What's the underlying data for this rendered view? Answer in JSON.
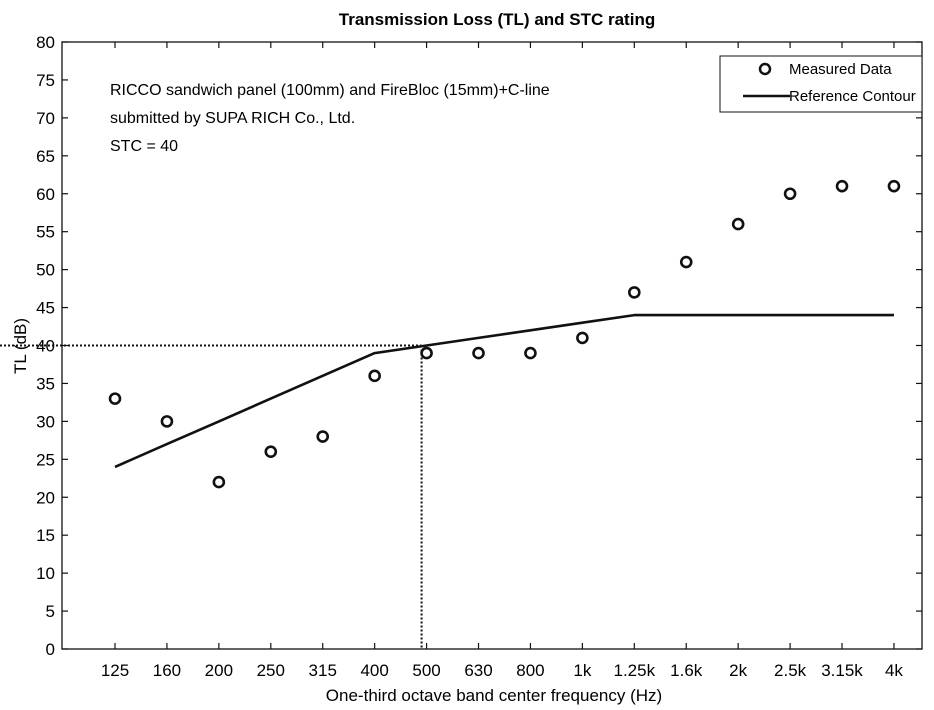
{
  "chart_data": {
    "type": "line",
    "title": "Transmission Loss (TL) and STC rating",
    "xlabel": "One-third octave band center frequency (Hz)",
    "ylabel": "TL (dB)",
    "categories": [
      "125",
      "160",
      "200",
      "250",
      "315",
      "400",
      "500",
      "630",
      "800",
      "1k",
      "1.25k",
      "1.6k",
      "2k",
      "2.5k",
      "3.15k",
      "4k"
    ],
    "ylim": [
      0,
      80
    ],
    "yticks": [
      0,
      5,
      10,
      15,
      20,
      25,
      30,
      35,
      40,
      45,
      50,
      55,
      60,
      65,
      70,
      75,
      80
    ],
    "grid": false,
    "legend_position": "top-right",
    "series": [
      {
        "name": "Measured Data",
        "style": "markers",
        "values": [
          33,
          30,
          22,
          26,
          28,
          36,
          39,
          39,
          39,
          41,
          47,
          51,
          56,
          60,
          61,
          61
        ]
      },
      {
        "name": "Reference Contour",
        "style": "line",
        "values": [
          24,
          27,
          30,
          33,
          36,
          39,
          40,
          41,
          42,
          43,
          44,
          44,
          44,
          44,
          44,
          44
        ]
      }
    ],
    "stc_marker": {
      "frequency": "500",
      "value": 40
    },
    "annotations": [
      "RICCO sandwich panel (100mm) and FireBloc (15mm)+C-line",
      "submitted by SUPA RICH Co., Ltd.",
      "STC = 40"
    ],
    "colors": {
      "foreground": "#111111",
      "background": "#ffffff"
    }
  }
}
